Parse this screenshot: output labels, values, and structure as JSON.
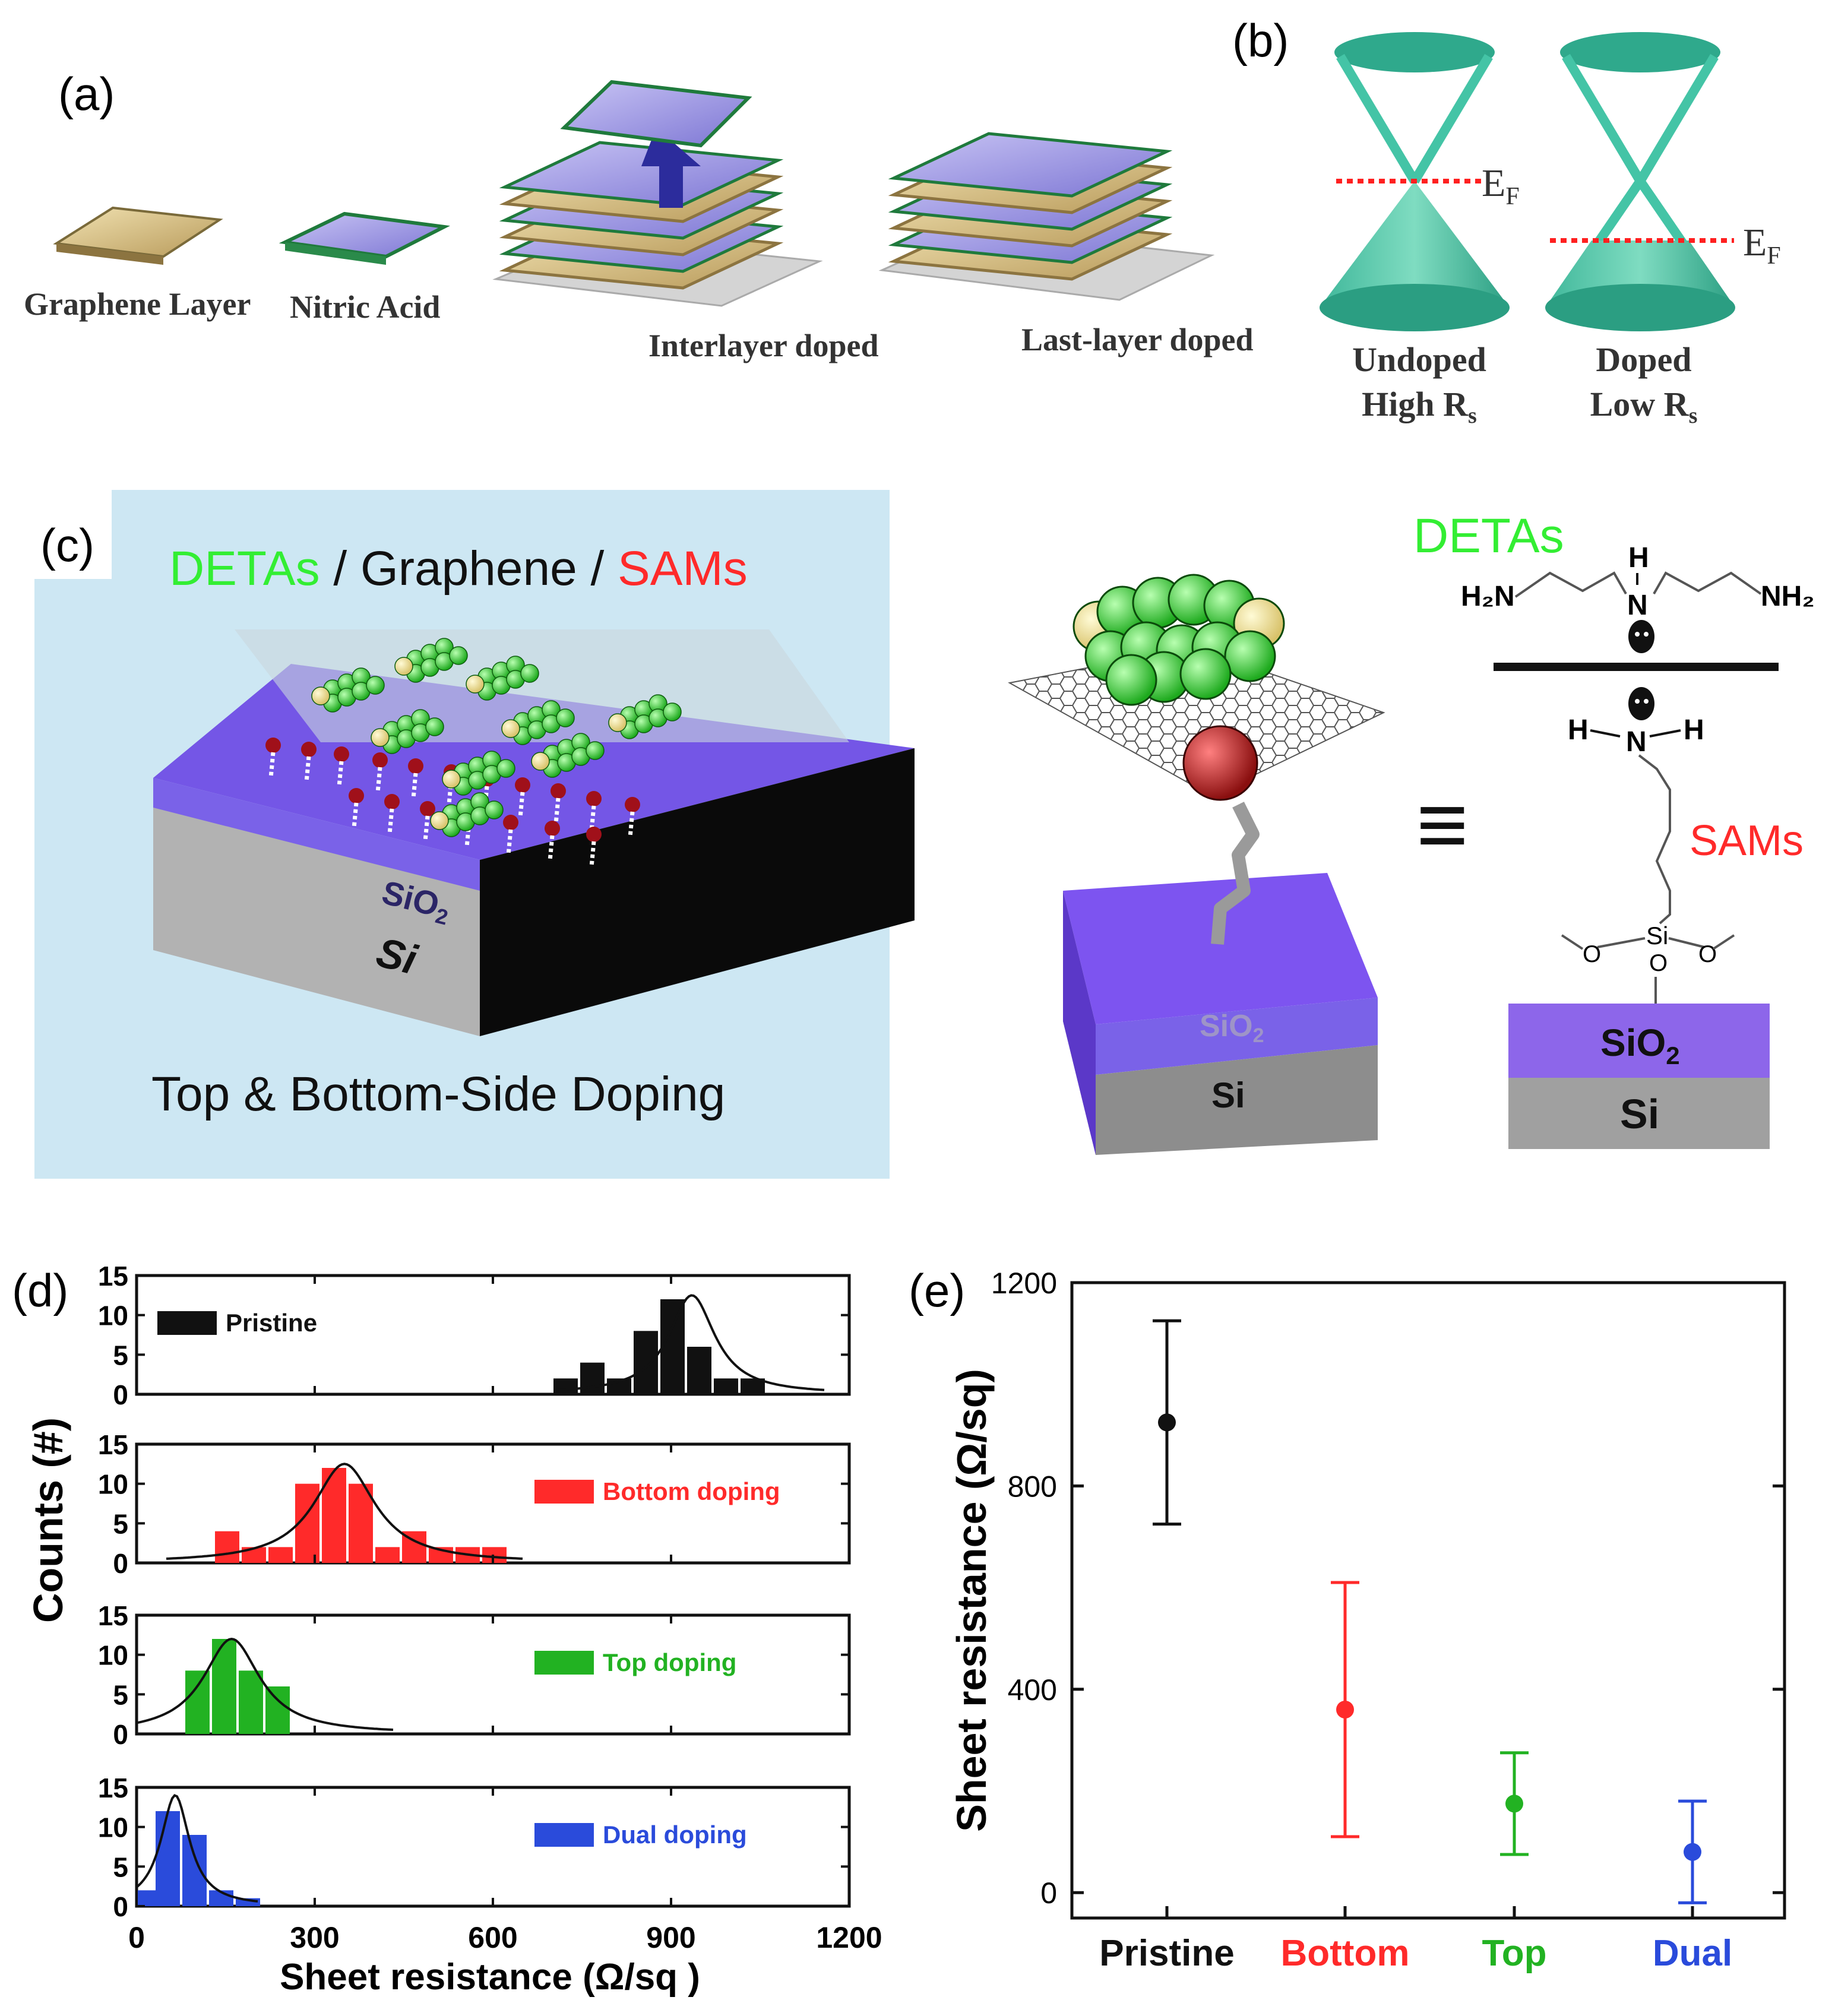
{
  "panel_a": {
    "label": "(a)",
    "captions": [
      "Graphene Layer",
      "Nitric Acid",
      "Interlayer doped",
      "Last-layer doped"
    ]
  },
  "panel_b": {
    "label": "(b)",
    "fermi_symbol": "E",
    "fermi_sub": "F",
    "undoped": [
      "Undoped",
      "High R"
    ],
    "doped": [
      "Doped",
      "Low R"
    ],
    "rs_sub": "s"
  },
  "panel_c": {
    "label": "(c)",
    "heading_parts": [
      "DETAs",
      " / Graphene / ",
      "SAMs"
    ],
    "caption": "Top & Bottom-Side Doping",
    "sio2_main": "SiO",
    "sio2_sub": "2",
    "si": "Si",
    "equiv": "≡",
    "detas": "DETAs",
    "sams": "SAMs",
    "h2n": "H₂N",
    "nh2": "NH₂",
    "n": "N",
    "h": "H",
    "si_atom": "Si",
    "o": "O"
  },
  "colors": {
    "black": "#111111",
    "red": "#ff2a2a",
    "green": "#22b222",
    "blue": "#2a4bdb",
    "teal": "#2fa98c",
    "sio2": "#7456e6",
    "si": "#a9a9a9",
    "panel_c_bg": "#cde7f3",
    "bright_green": "#33ee33"
  },
  "chart_data": [
    {
      "type": "bar",
      "panel": "(d)",
      "xlabel": "Sheet resistance (Ω/sq )",
      "ylabel": "Counts (#)",
      "xlim": [
        0,
        1200
      ],
      "ylim": [
        0,
        15
      ],
      "xticks": [
        0,
        300,
        600,
        900,
        1200
      ],
      "yticks": [
        0,
        5,
        10,
        15
      ],
      "bin_width": 45,
      "series": [
        {
          "name": "Pristine",
          "color": "#111111",
          "bins": [
            [
              700,
              2
            ],
            [
              745,
              4
            ],
            [
              790,
              2
            ],
            [
              835,
              8
            ],
            [
              880,
              12
            ],
            [
              925,
              6
            ],
            [
              970,
              2
            ],
            [
              1015,
              2
            ]
          ],
          "fit": {
            "center": 935,
            "width": 45,
            "peak": 12.5
          }
        },
        {
          "name": "Bottom doping",
          "color": "#ff2a2a",
          "bins": [
            [
              130,
              4
            ],
            [
              175,
              2
            ],
            [
              220,
              2
            ],
            [
              265,
              10
            ],
            [
              310,
              12
            ],
            [
              355,
              10
            ],
            [
              400,
              2
            ],
            [
              445,
              4
            ],
            [
              490,
              2
            ],
            [
              535,
              2
            ],
            [
              580,
              2
            ]
          ],
          "fit": {
            "center": 350,
            "width": 60,
            "peak": 12.5
          }
        },
        {
          "name": "Top doping",
          "color": "#22b222",
          "bins": [
            [
              80,
              8
            ],
            [
              125,
              12
            ],
            [
              170,
              8
            ],
            [
              215,
              6
            ]
          ],
          "fit": {
            "center": 160,
            "width": 55,
            "peak": 12
          }
        },
        {
          "name": "Dual doping",
          "color": "#2a4bdb",
          "bins": [
            [
              0,
              2
            ],
            [
              30,
              12
            ],
            [
              75,
              9
            ],
            [
              120,
              2
            ],
            [
              165,
              1
            ]
          ],
          "fit": {
            "center": 65,
            "width": 28,
            "peak": 14
          }
        }
      ]
    },
    {
      "type": "scatter",
      "panel": "(e)",
      "ylabel": "Sheet resistance (Ω/sq)",
      "categories": [
        "Pristine",
        "Bottom",
        "Top",
        "Dual"
      ],
      "values": [
        925,
        360,
        175,
        80
      ],
      "errors": [
        200,
        250,
        100,
        100
      ],
      "colors": [
        "#111111",
        "#ff2a2a",
        "#22b222",
        "#2a4bdb"
      ],
      "ylim": [
        -50,
        1200
      ],
      "yticks": [
        0,
        400,
        800,
        1200
      ]
    }
  ]
}
